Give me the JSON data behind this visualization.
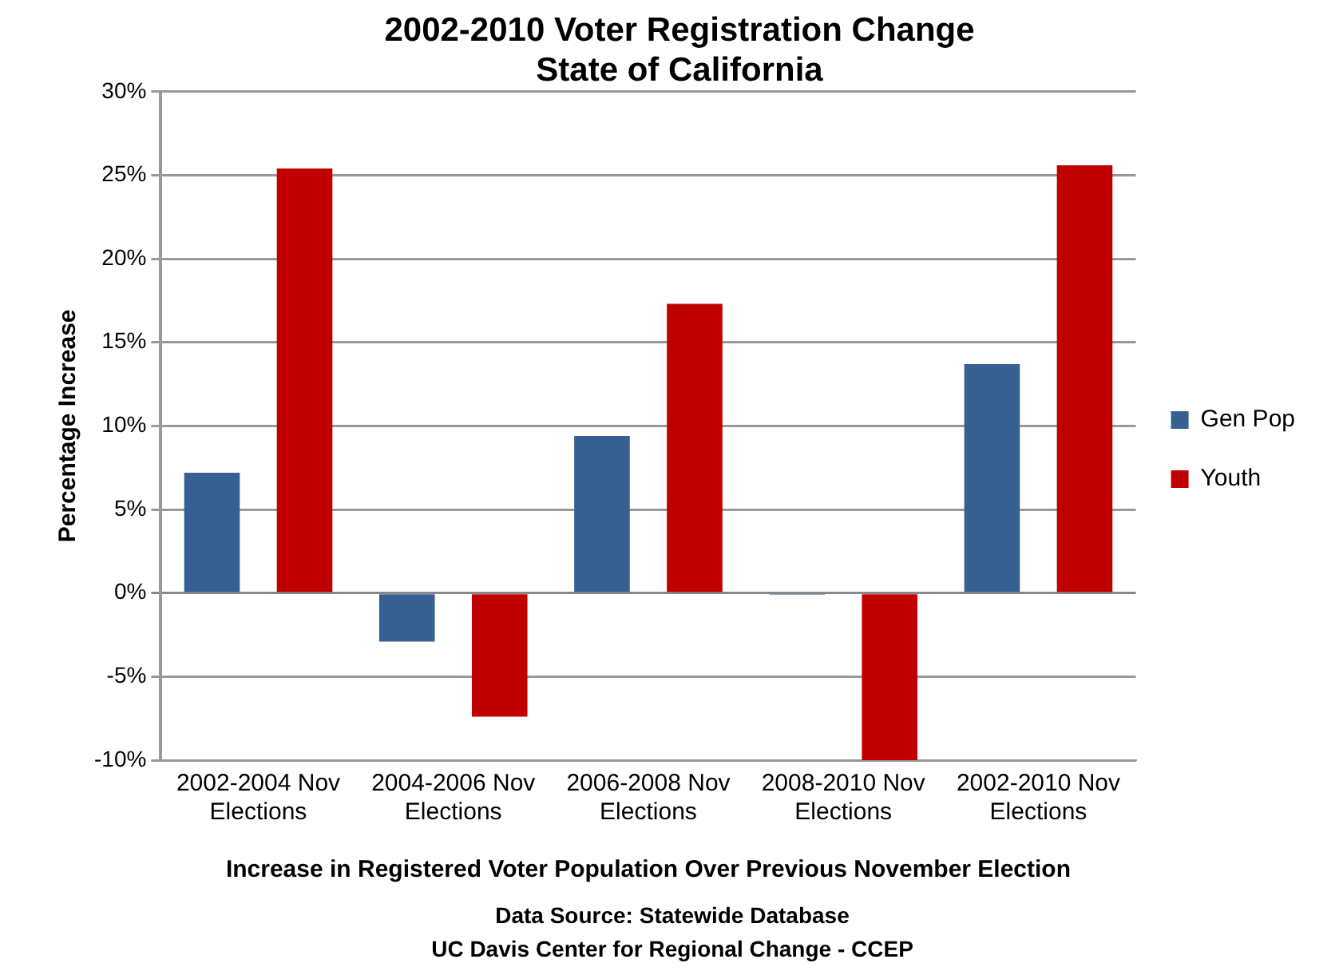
{
  "chart_data": {
    "type": "bar",
    "title": "2002-2010 Voter Registration Change",
    "subtitle": "State of California",
    "ylabel": "Percentage Increase",
    "xlabel": "Increase in Registered Voter Population Over Previous November Election",
    "annotations": [
      "Data Source: Statewide Database",
      "UC Davis Center for Regional Change - CCEP"
    ],
    "categories": [
      "2002-2004 Nov Elections",
      "2004-2006 Nov Elections",
      "2006-2008 Nov Elections",
      "2008-2010 Nov Elections",
      "2002-2010 Nov Elections"
    ],
    "series": [
      {
        "name": "Gen Pop",
        "color": "#376092",
        "values": [
          7.2,
          -2.9,
          9.4,
          -0.1,
          13.7
        ]
      },
      {
        "name": "Youth",
        "color": "#c00000",
        "values": [
          25.4,
          -7.4,
          17.3,
          -10,
          25.6
        ]
      }
    ],
    "ylim": [
      -10,
      30
    ],
    "yticks": [
      {
        "value": -10,
        "label": "-10%"
      },
      {
        "value": -5,
        "label": "-5%"
      },
      {
        "value": 0,
        "label": "0%"
      },
      {
        "value": 5,
        "label": "5%"
      },
      {
        "value": 10,
        "label": "10%"
      },
      {
        "value": 15,
        "label": "15%"
      },
      {
        "value": 20,
        "label": "20%"
      },
      {
        "value": 25,
        "label": "25%"
      },
      {
        "value": 30,
        "label": "30%"
      }
    ],
    "grid": "y",
    "legend": "right"
  }
}
